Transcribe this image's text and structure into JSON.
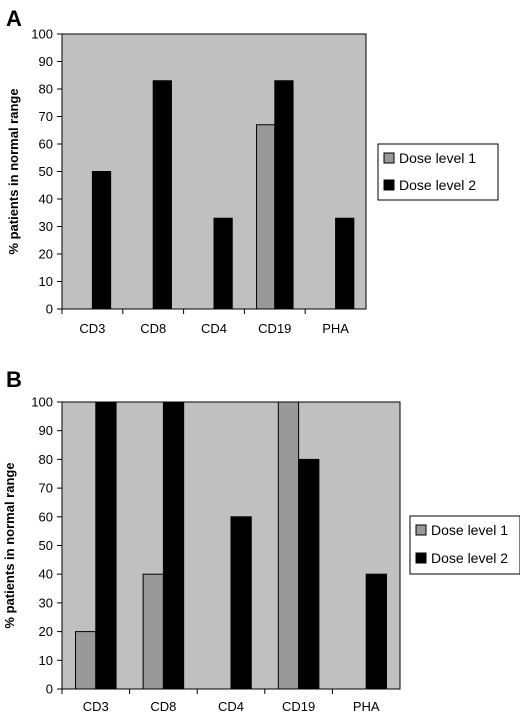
{
  "chart_data": [
    {
      "panel_label": "A",
      "type": "bar",
      "categories": [
        "CD3",
        "CD8",
        "CD4",
        "CD19",
        "PHA"
      ],
      "series": [
        {
          "name": "Dose level 1",
          "color": "#999999",
          "values": [
            0,
            0,
            0,
            67,
            0
          ]
        },
        {
          "name": "Dose level 2",
          "color": "#000000",
          "values": [
            50,
            83,
            33,
            83,
            33
          ]
        }
      ],
      "xlabel": "",
      "ylabel": "% patients in normal range",
      "ylim": [
        0,
        100
      ],
      "yticks": [
        "0",
        "10",
        "20",
        "30",
        "40",
        "50",
        "60",
        "70",
        "80",
        "90",
        "100"
      ],
      "plot_background": "#c0c0c0",
      "grid": false,
      "legend_position": "right"
    },
    {
      "panel_label": "B",
      "type": "bar",
      "categories": [
        "CD3",
        "CD8",
        "CD4",
        "CD19",
        "PHA"
      ],
      "series": [
        {
          "name": "Dose level 1",
          "color": "#999999",
          "values": [
            20,
            40,
            0,
            100,
            0
          ]
        },
        {
          "name": "Dose level 2",
          "color": "#000000",
          "values": [
            100,
            100,
            60,
            80,
            40
          ]
        }
      ],
      "xlabel": "",
      "ylabel": "% patients in normal range",
      "ylim": [
        0,
        100
      ],
      "yticks": [
        "0",
        "10",
        "20",
        "30",
        "40",
        "50",
        "60",
        "70",
        "80",
        "90",
        "100"
      ],
      "plot_background": "#c0c0c0",
      "grid": false,
      "legend_position": "right"
    }
  ]
}
